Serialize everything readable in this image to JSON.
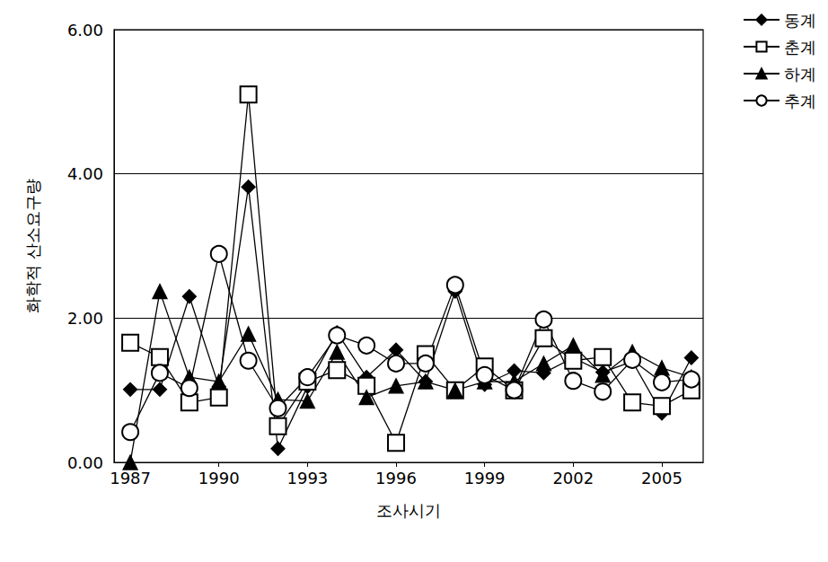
{
  "chart_data": {
    "type": "line",
    "x_label": "조사시기",
    "y_label": "화학적 산소요구량",
    "x": [
      1987,
      1988,
      1989,
      1990,
      1991,
      1992,
      1993,
      1994,
      1995,
      1996,
      1997,
      1998,
      1999,
      2000,
      2001,
      2002,
      2003,
      2004,
      2005,
      2006
    ],
    "series": [
      {
        "name": "동계",
        "color": "#000000",
        "marker": "diamond",
        "values": [
          1.01,
          1.01,
          2.3,
          1.05,
          3.82,
          0.19,
          1.05,
          1.8,
          1.18,
          1.56,
          1.12,
          2.37,
          1.08,
          1.27,
          1.24,
          1.45,
          1.25,
          1.4,
          0.68,
          1.45
        ]
      },
      {
        "name": "춘계",
        "color": "#000000",
        "marker": "square-open",
        "values": [
          1.66,
          1.46,
          0.83,
          0.9,
          5.1,
          0.5,
          1.12,
          1.28,
          1.06,
          0.27,
          1.5,
          1.0,
          1.33,
          1.0,
          1.72,
          1.41,
          1.46,
          0.83,
          0.78,
          1.0
        ]
      },
      {
        "name": "하계",
        "color": "#000000",
        "marker": "triangle",
        "values": [
          0.0,
          2.37,
          1.18,
          1.12,
          1.78,
          0.87,
          0.85,
          1.53,
          0.9,
          1.06,
          1.12,
          1.0,
          1.12,
          1.12,
          1.37,
          1.62,
          1.21,
          1.53,
          1.31,
          1.18
        ]
      },
      {
        "name": "추계",
        "color": "#000000",
        "marker": "circle-open",
        "values": [
          0.42,
          1.24,
          1.03,
          2.89,
          1.41,
          0.75,
          1.18,
          1.76,
          1.62,
          1.37,
          1.37,
          2.46,
          1.21,
          1.0,
          1.98,
          1.13,
          0.98,
          1.42,
          1.11,
          1.15
        ]
      }
    ],
    "xlim": [
      1986.45,
      2006.4
    ],
    "xticks": [
      1987,
      1990,
      1993,
      1996,
      1999,
      2002,
      2005
    ],
    "ylim": [
      0,
      6
    ],
    "yticks": [
      {
        "value": 0,
        "label": "0.00"
      },
      {
        "value": 2,
        "label": "2.00"
      },
      {
        "value": 4,
        "label": "4.00"
      },
      {
        "value": 6,
        "label": "6.00"
      }
    ],
    "grid": true,
    "legend": "right"
  }
}
